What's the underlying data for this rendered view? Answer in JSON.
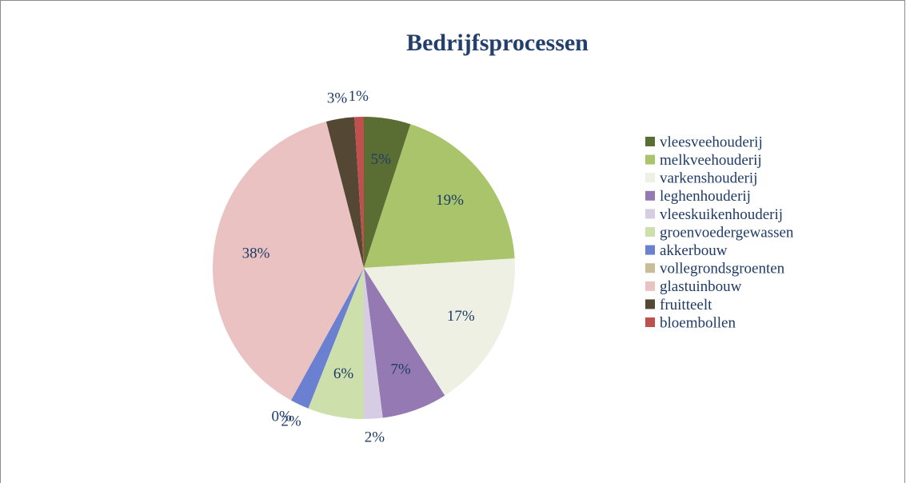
{
  "chart_data": {
    "type": "pie",
    "title": "Bedrijfsprocessen",
    "categories": [
      "vleesveehouderij",
      "melkveehouderij",
      "varkenshouderij",
      "leghenhouderij",
      "vleeskuikenhouderij",
      "groenvoedergewassen",
      "akkerbouw",
      "vollegrondsgroenten",
      "glastuinbouw",
      "fruitteelt",
      "bloembollen"
    ],
    "values": [
      5,
      19,
      17,
      7,
      2,
      6,
      2,
      0,
      38,
      3,
      1
    ],
    "value_labels": [
      "5%",
      "19%",
      "17%",
      "7%",
      "2%",
      "6%",
      "2%",
      "0%",
      "38%",
      "3%",
      "1%"
    ],
    "colors": [
      "#5a6e33",
      "#a9c46a",
      "#eef0e3",
      "#9479b3",
      "#d6cde4",
      "#cddfaa",
      "#6b80d0",
      "#c9bd98",
      "#e9c2c1",
      "#544733",
      "#c0504d"
    ],
    "legend": "right"
  }
}
